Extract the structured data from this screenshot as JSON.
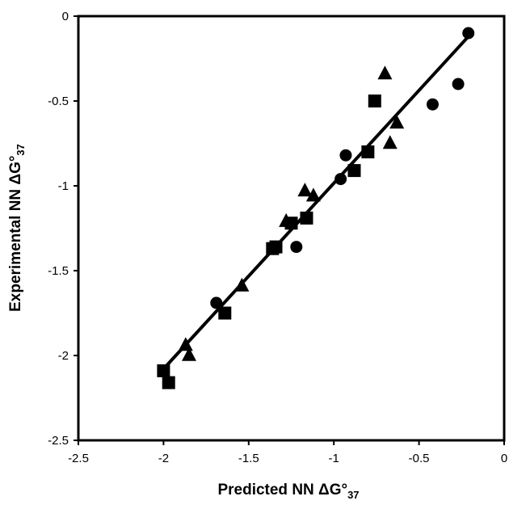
{
  "chart_data": {
    "type": "scatter",
    "title": "",
    "xlabel": {
      "main": "Predicted NN ΔG°",
      "sub": "37"
    },
    "ylabel": {
      "main": "Experimental NN ΔG°",
      "sub": "37"
    },
    "xlim": [
      -2.5,
      0
    ],
    "ylim": [
      -2.5,
      0
    ],
    "x_ticks": [
      -2.5,
      -2,
      -1.5,
      -1,
      -0.5,
      0
    ],
    "y_ticks": [
      -2.5,
      -2,
      -1.5,
      -1,
      -0.5,
      0
    ],
    "x_tick_labels": [
      "-2.5",
      "-2",
      "-1.5",
      "-1",
      "-0.5",
      "0"
    ],
    "y_tick_labels": [
      "-2.5",
      "-2",
      "-1.5",
      "-1",
      "-0.5",
      "0"
    ],
    "grid": false,
    "legend": "none",
    "marker_color": "#000000",
    "series": [
      {
        "marker": "circle",
        "x": [
          -0.21,
          -0.27,
          -0.42,
          -0.93,
          -0.96,
          -1.22,
          -1.69
        ],
        "y": [
          -0.1,
          -0.4,
          -0.52,
          -0.82,
          -0.96,
          -1.36,
          -1.69
        ]
      },
      {
        "marker": "triangle",
        "x": [
          -0.7,
          -0.63,
          -0.67,
          -1.17,
          -1.12,
          -1.28,
          -1.54,
          -1.87,
          -1.85
        ],
        "y": [
          -0.34,
          -0.63,
          -0.75,
          -1.03,
          -1.06,
          -1.21,
          -1.59,
          -1.94,
          -2.0
        ]
      },
      {
        "marker": "square",
        "x": [
          -0.76,
          -0.8,
          -0.88,
          -1.16,
          -1.25,
          -1.34,
          -1.36,
          -1.64,
          -2.0,
          -1.97
        ],
        "y": [
          -0.5,
          -0.8,
          -0.91,
          -1.19,
          -1.22,
          -1.36,
          -1.37,
          -1.75,
          -2.09,
          -2.16
        ]
      }
    ],
    "fit_line": {
      "x": [
        -2.01,
        -0.21
      ],
      "y": [
        -2.09,
        -0.12
      ]
    }
  }
}
